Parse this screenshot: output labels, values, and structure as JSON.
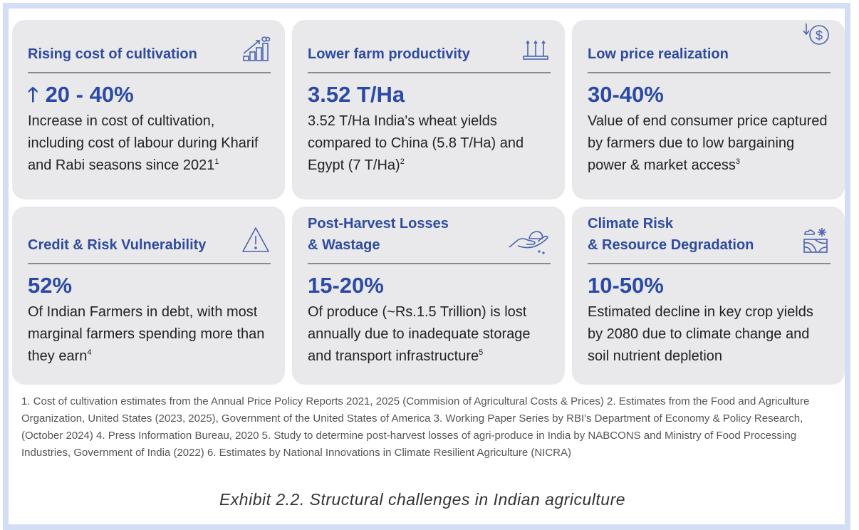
{
  "colors": {
    "title": "#2f4b9f",
    "value": "#2b49a6",
    "card_bg": "#e9e9eb",
    "frame": "#d3def5"
  },
  "cards": [
    {
      "title": "Rising cost of cultivation",
      "icon": "rising-bar-chart-icon",
      "value": "20 - 40%",
      "value_icon": "up-arrow-icon",
      "body": "Increase in cost of cultivation, including cost of labour during Kharif and Rabi seasons since 2021",
      "sup": "1"
    },
    {
      "title": "Lower farm productivity",
      "icon": "crop-tray-icon",
      "value": "3.52 T/Ha",
      "body": "3.52 T/Ha India's wheat yields compared to China (5.8 T/Ha) and Egypt (7 T/Ha)",
      "sup": "2"
    },
    {
      "title": "Low price realization",
      "icon": "dollar-down-icon",
      "value": "30-40%",
      "body": "Value of end consumer price captured by farmers due to low bargaining power & market access",
      "sup": "3"
    },
    {
      "title": "Credit & Risk Vulnerability",
      "icon": "warning-icon",
      "value": "52%",
      "body": "Of Indian Farmers in debt, with most marginal farmers spending more than they earn",
      "sup": "4"
    },
    {
      "title_line1": "Post-Harvest Losses",
      "title_line2": "& Wastage",
      "icon": "hand-grain-icon",
      "value": "15-20%",
      "body": "Of produce (~Rs.1.5 Trillion) is lost annually due to inadequate storage and transport infrastructure",
      "sup": "5"
    },
    {
      "title_line1": "Climate Risk",
      "title_line2": "& Resource Degradation",
      "icon": "climate-field-icon",
      "value": "10-50%",
      "body": "Estimated decline in key crop yields by 2080 due to climate change and soil nutrient depletion",
      "sup": ""
    }
  ],
  "footnotes": "1. Cost of cultivation estimates from the Annual Price Policy Reports 2021, 2025 (Commision of Agricultural Costs & Prices) 2. Estimates from the Food and Agriculture Organization, United States (2023, 2025), Government of the United States of America 3.  Working Paper Series by RBI's Department of Economy & Policy Research, (October 2024) 4. Press Information Bureau, 2020 5. Study to determine post-harvest losses of agri-produce in India by NABCONS and Ministry of Food Processing Industries, Government of India (2022) 6. Estimates by National Innovations in Climate Resilient Agriculture (NICRA)",
  "caption": "Exhibit 2.2. Structural challenges in Indian agriculture"
}
